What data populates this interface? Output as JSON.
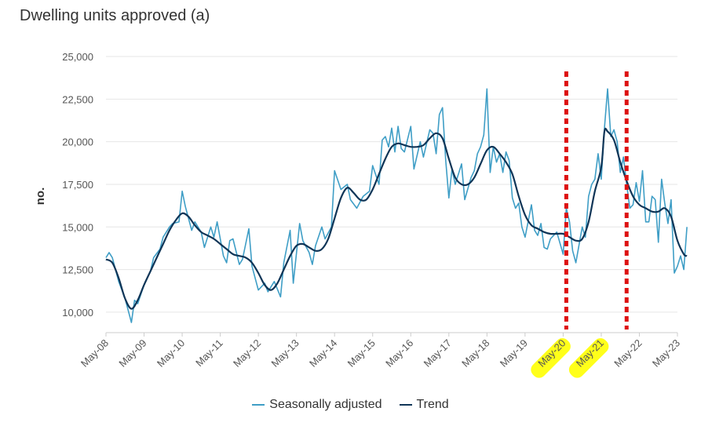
{
  "chart_data": {
    "type": "line",
    "title": "Dwelling units approved (a)",
    "xlabel": "",
    "ylabel": "no.",
    "ylim": [
      8800,
      25000
    ],
    "yticks": [
      "10,000",
      "12,500",
      "15,000",
      "17,500",
      "20,000",
      "22,500",
      "25,000"
    ],
    "ytick_values": [
      10000,
      12500,
      15000,
      17500,
      20000,
      22500,
      25000
    ],
    "xticks": [
      "May-08",
      "May-09",
      "May-10",
      "May-11",
      "May-12",
      "May-13",
      "May-14",
      "May-15",
      "May-16",
      "May-17",
      "May-18",
      "May-19",
      "May-20",
      "May-21",
      "May-22",
      "May-23"
    ],
    "highlighted_xticks": [
      "May-20",
      "May-21"
    ],
    "annotation_lines_at_month_index": [
      144,
      163
    ],
    "series": [
      {
        "name": "Seasonally adjusted",
        "color": "#3f9ec6",
        "keypoints": [
          [
            0,
            13200
          ],
          [
            1,
            13500
          ],
          [
            2,
            13200
          ],
          [
            4,
            11800
          ],
          [
            6,
            10800
          ],
          [
            8,
            9400
          ],
          [
            9,
            10700
          ],
          [
            10,
            10500
          ],
          [
            12,
            11600
          ],
          [
            14,
            12400
          ],
          [
            15,
            13200
          ],
          [
            17,
            13700
          ],
          [
            18,
            14400
          ],
          [
            20,
            15000
          ],
          [
            21,
            15200
          ],
          [
            23,
            15300
          ],
          [
            24,
            17100
          ],
          [
            25,
            16200
          ],
          [
            27,
            14800
          ],
          [
            28,
            15300
          ],
          [
            30,
            14700
          ],
          [
            31,
            13800
          ],
          [
            33,
            15000
          ],
          [
            34,
            14400
          ],
          [
            35,
            15300
          ],
          [
            37,
            13300
          ],
          [
            38,
            12900
          ],
          [
            39,
            14200
          ],
          [
            40,
            14300
          ],
          [
            42,
            12800
          ],
          [
            43,
            13100
          ],
          [
            45,
            14900
          ],
          [
            46,
            12700
          ],
          [
            48,
            11300
          ],
          [
            50,
            11700
          ],
          [
            51,
            11200
          ],
          [
            53,
            11800
          ],
          [
            55,
            10900
          ],
          [
            56,
            12900
          ],
          [
            58,
            14800
          ],
          [
            59,
            11700
          ],
          [
            61,
            15200
          ],
          [
            62,
            14200
          ],
          [
            64,
            13500
          ],
          [
            65,
            12800
          ],
          [
            66,
            13900
          ],
          [
            68,
            15000
          ],
          [
            69,
            14300
          ],
          [
            71,
            15000
          ],
          [
            72,
            18300
          ],
          [
            74,
            17200
          ],
          [
            76,
            17500
          ],
          [
            77,
            16600
          ],
          [
            79,
            16100
          ],
          [
            81,
            16800
          ],
          [
            83,
            17100
          ],
          [
            84,
            18600
          ],
          [
            86,
            17500
          ],
          [
            87,
            20100
          ],
          [
            88,
            20300
          ],
          [
            89,
            19700
          ],
          [
            90,
            20800
          ],
          [
            91,
            19400
          ],
          [
            92,
            20900
          ],
          [
            93,
            19600
          ],
          [
            94,
            19400
          ],
          [
            96,
            20900
          ],
          [
            97,
            18400
          ],
          [
            99,
            20000
          ],
          [
            100,
            19100
          ],
          [
            102,
            20700
          ],
          [
            103,
            20500
          ],
          [
            104,
            19300
          ],
          [
            105,
            21600
          ],
          [
            106,
            22000
          ],
          [
            107,
            18900
          ],
          [
            108,
            16700
          ],
          [
            109,
            18400
          ],
          [
            110,
            17500
          ],
          [
            112,
            18700
          ],
          [
            113,
            16600
          ],
          [
            115,
            17900
          ],
          [
            116,
            18300
          ],
          [
            117,
            19300
          ],
          [
            118,
            19700
          ],
          [
            119,
            20400
          ],
          [
            120,
            23100
          ],
          [
            121,
            18200
          ],
          [
            122,
            19700
          ],
          [
            123,
            18800
          ],
          [
            124,
            19300
          ],
          [
            125,
            18200
          ],
          [
            126,
            19400
          ],
          [
            127,
            18900
          ],
          [
            128,
            16700
          ],
          [
            129,
            16100
          ],
          [
            130,
            16400
          ],
          [
            131,
            15000
          ],
          [
            132,
            14400
          ],
          [
            134,
            16300
          ],
          [
            135,
            14800
          ],
          [
            136,
            14500
          ],
          [
            137,
            15200
          ],
          [
            138,
            13800
          ],
          [
            139,
            13700
          ],
          [
            140,
            14300
          ],
          [
            141,
            14500
          ],
          [
            142,
            14700
          ],
          [
            144,
            13400
          ],
          [
            145,
            16100
          ],
          [
            146,
            15300
          ],
          [
            147,
            13600
          ],
          [
            148,
            12900
          ],
          [
            150,
            15000
          ],
          [
            151,
            14400
          ],
          [
            152,
            16800
          ],
          [
            153,
            17500
          ],
          [
            154,
            17800
          ],
          [
            155,
            19300
          ],
          [
            156,
            17800
          ],
          [
            157,
            20800
          ],
          [
            158,
            23100
          ],
          [
            159,
            20300
          ],
          [
            160,
            20700
          ],
          [
            161,
            20000
          ],
          [
            162,
            18200
          ],
          [
            163,
            19100
          ],
          [
            164,
            17500
          ],
          [
            165,
            16100
          ],
          [
            166,
            16300
          ],
          [
            167,
            17600
          ],
          [
            168,
            16500
          ],
          [
            169,
            18300
          ],
          [
            170,
            15300
          ],
          [
            171,
            15300
          ],
          [
            172,
            16800
          ],
          [
            173,
            16600
          ],
          [
            174,
            14100
          ],
          [
            175,
            17800
          ],
          [
            176,
            16400
          ],
          [
            177,
            15200
          ],
          [
            178,
            16600
          ],
          [
            179,
            12300
          ],
          [
            180,
            12700
          ],
          [
            181,
            13300
          ],
          [
            182,
            12500
          ],
          [
            183,
            15000
          ]
        ]
      },
      {
        "name": "Trend",
        "color": "#0f3557",
        "keypoints": [
          [
            0,
            13100
          ],
          [
            2,
            12900
          ],
          [
            4,
            12000
          ],
          [
            6,
            10800
          ],
          [
            8,
            10200
          ],
          [
            10,
            10700
          ],
          [
            12,
            11600
          ],
          [
            14,
            12400
          ],
          [
            16,
            13200
          ],
          [
            18,
            14000
          ],
          [
            20,
            14800
          ],
          [
            22,
            15400
          ],
          [
            24,
            15800
          ],
          [
            26,
            15600
          ],
          [
            28,
            15100
          ],
          [
            30,
            14700
          ],
          [
            32,
            14500
          ],
          [
            34,
            14300
          ],
          [
            36,
            14000
          ],
          [
            38,
            13700
          ],
          [
            40,
            13400
          ],
          [
            42,
            13300
          ],
          [
            44,
            13200
          ],
          [
            46,
            12900
          ],
          [
            48,
            12300
          ],
          [
            50,
            11600
          ],
          [
            52,
            11300
          ],
          [
            54,
            11700
          ],
          [
            56,
            12500
          ],
          [
            58,
            13300
          ],
          [
            60,
            13900
          ],
          [
            62,
            14000
          ],
          [
            64,
            13800
          ],
          [
            66,
            13600
          ],
          [
            68,
            13700
          ],
          [
            70,
            14300
          ],
          [
            72,
            15500
          ],
          [
            74,
            16700
          ],
          [
            76,
            17300
          ],
          [
            78,
            17000
          ],
          [
            80,
            16600
          ],
          [
            82,
            16600
          ],
          [
            84,
            17200
          ],
          [
            86,
            18100
          ],
          [
            88,
            19000
          ],
          [
            90,
            19700
          ],
          [
            92,
            19900
          ],
          [
            94,
            19800
          ],
          [
            96,
            19700
          ],
          [
            98,
            19700
          ],
          [
            100,
            19800
          ],
          [
            102,
            20200
          ],
          [
            104,
            20500
          ],
          [
            106,
            20200
          ],
          [
            108,
            19000
          ],
          [
            110,
            17900
          ],
          [
            112,
            17500
          ],
          [
            114,
            17500
          ],
          [
            116,
            17900
          ],
          [
            118,
            18700
          ],
          [
            120,
            19500
          ],
          [
            122,
            19700
          ],
          [
            124,
            19300
          ],
          [
            126,
            18800
          ],
          [
            128,
            18100
          ],
          [
            130,
            16800
          ],
          [
            132,
            15700
          ],
          [
            134,
            15100
          ],
          [
            136,
            14900
          ],
          [
            138,
            14700
          ],
          [
            140,
            14600
          ],
          [
            142,
            14600
          ],
          [
            144,
            14600
          ],
          [
            146,
            14400
          ],
          [
            148,
            14200
          ],
          [
            150,
            14300
          ],
          [
            152,
            15300
          ],
          [
            154,
            17100
          ],
          [
            156,
            18500
          ],
          [
            157,
            20600
          ],
          [
            158,
            20600
          ],
          [
            160,
            20100
          ],
          [
            162,
            18800
          ],
          [
            164,
            17700
          ],
          [
            166,
            16800
          ],
          [
            168,
            16300
          ],
          [
            170,
            16100
          ],
          [
            172,
            15900
          ],
          [
            174,
            15900
          ],
          [
            176,
            16100
          ],
          [
            178,
            15600
          ],
          [
            180,
            14200
          ],
          [
            182,
            13400
          ],
          [
            183,
            13300
          ]
        ]
      }
    ]
  }
}
